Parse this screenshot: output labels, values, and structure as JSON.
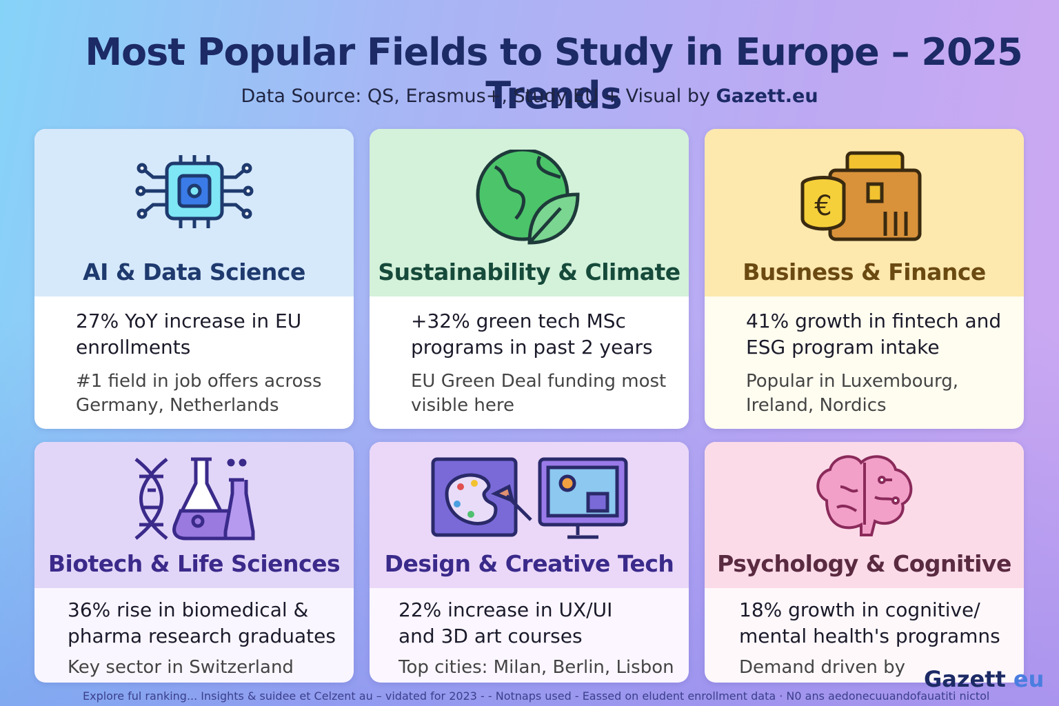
{
  "header": {
    "title": "Most Popular Fields to Study in Europe – 2025 Trends",
    "subtitle": "Data Source: QS, Erasmus+, Study,EU + Visual by",
    "subtitle_brand": "Gazett.eu"
  },
  "cards": [
    {
      "title": "AI & Data Science",
      "stat": "27% YoY increase in EU enrollments",
      "note": "#1 field in job offers across Germany, Netherlands"
    },
    {
      "title": "Sustainability & Climate",
      "stat": "+32% green tech MSc programs in past 2 years",
      "note": "EU Green Deal funding most visible here"
    },
    {
      "title": "Business & Finance",
      "stat": "41% growth in fintech and ESG program intake",
      "note": "Popular in Luxembourg, Ireland, Nordics"
    },
    {
      "title": "Biotech & Life Sciences",
      "stat": "36% rise in biomedical & pharma research graduates",
      "note": "Key sector in Switzerland"
    },
    {
      "title": "Design & Creative Tech",
      "stat": "22% increase in UX/UI and 3D art courses",
      "note": "Top cities: Milan, Berlin, Lisbon"
    },
    {
      "title": "Psychology & Cognitive",
      "stat": "18% growth in cognitive/ mental health's programns",
      "note": "Demand driven by"
    }
  ],
  "footer": "Explore ful  ranking... Insights & suidee et Celzent au  – vidated for 2023 - - Notnaps used - Eassed on eludent enrollment data · N0 ans aedonecuuandofauatiti nictol",
  "logo": {
    "name": "Gazett",
    "suffix": "eu"
  }
}
